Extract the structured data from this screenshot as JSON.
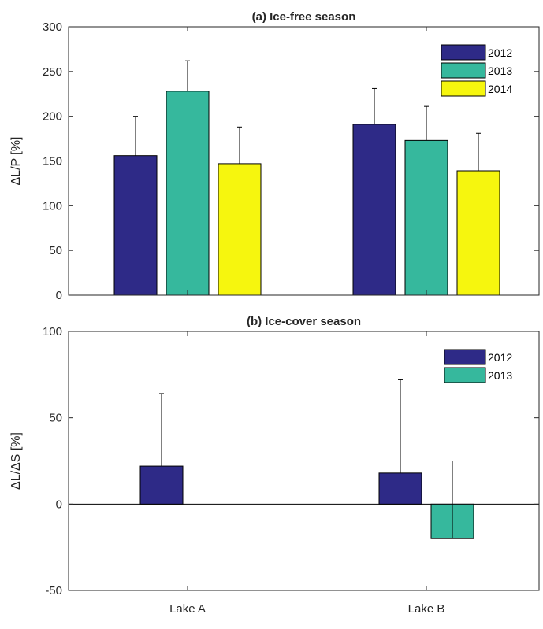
{
  "chart_data": [
    {
      "type": "bar",
      "title": "(a) Ice-free season",
      "ylabel": "ΔL/P  [%]",
      "xlabel": "",
      "categories": [
        "Lake A",
        "Lake B"
      ],
      "ylim": [
        0,
        300
      ],
      "yticks": [
        0,
        50,
        100,
        150,
        200,
        250,
        300
      ],
      "legend_position": "top-right",
      "colors": [
        "#2e2a87",
        "#36b89d",
        "#f6f60e"
      ],
      "series": [
        {
          "name": "2012",
          "values": [
            156,
            191
          ],
          "errors": [
            44,
            40
          ]
        },
        {
          "name": "2013",
          "values": [
            228,
            173
          ],
          "errors": [
            34,
            38
          ]
        },
        {
          "name": "2014",
          "values": [
            147,
            139
          ],
          "errors": [
            41,
            42
          ]
        }
      ]
    },
    {
      "type": "bar",
      "title": "(b) Ice-cover season",
      "ylabel": "ΔL/ΔS [%]",
      "xlabel": "",
      "categories": [
        "Lake A",
        "Lake B"
      ],
      "ylim": [
        -50,
        100
      ],
      "yticks": [
        -50,
        0,
        50,
        100
      ],
      "legend_position": "top-right",
      "colors": [
        "#2e2a87",
        "#36b89d"
      ],
      "series": [
        {
          "name": "2012",
          "values": [
            22,
            18
          ],
          "errors": [
            42,
            54
          ]
        },
        {
          "name": "2013",
          "values": [
            null,
            -20
          ],
          "errors": [
            null,
            45
          ]
        }
      ]
    }
  ]
}
